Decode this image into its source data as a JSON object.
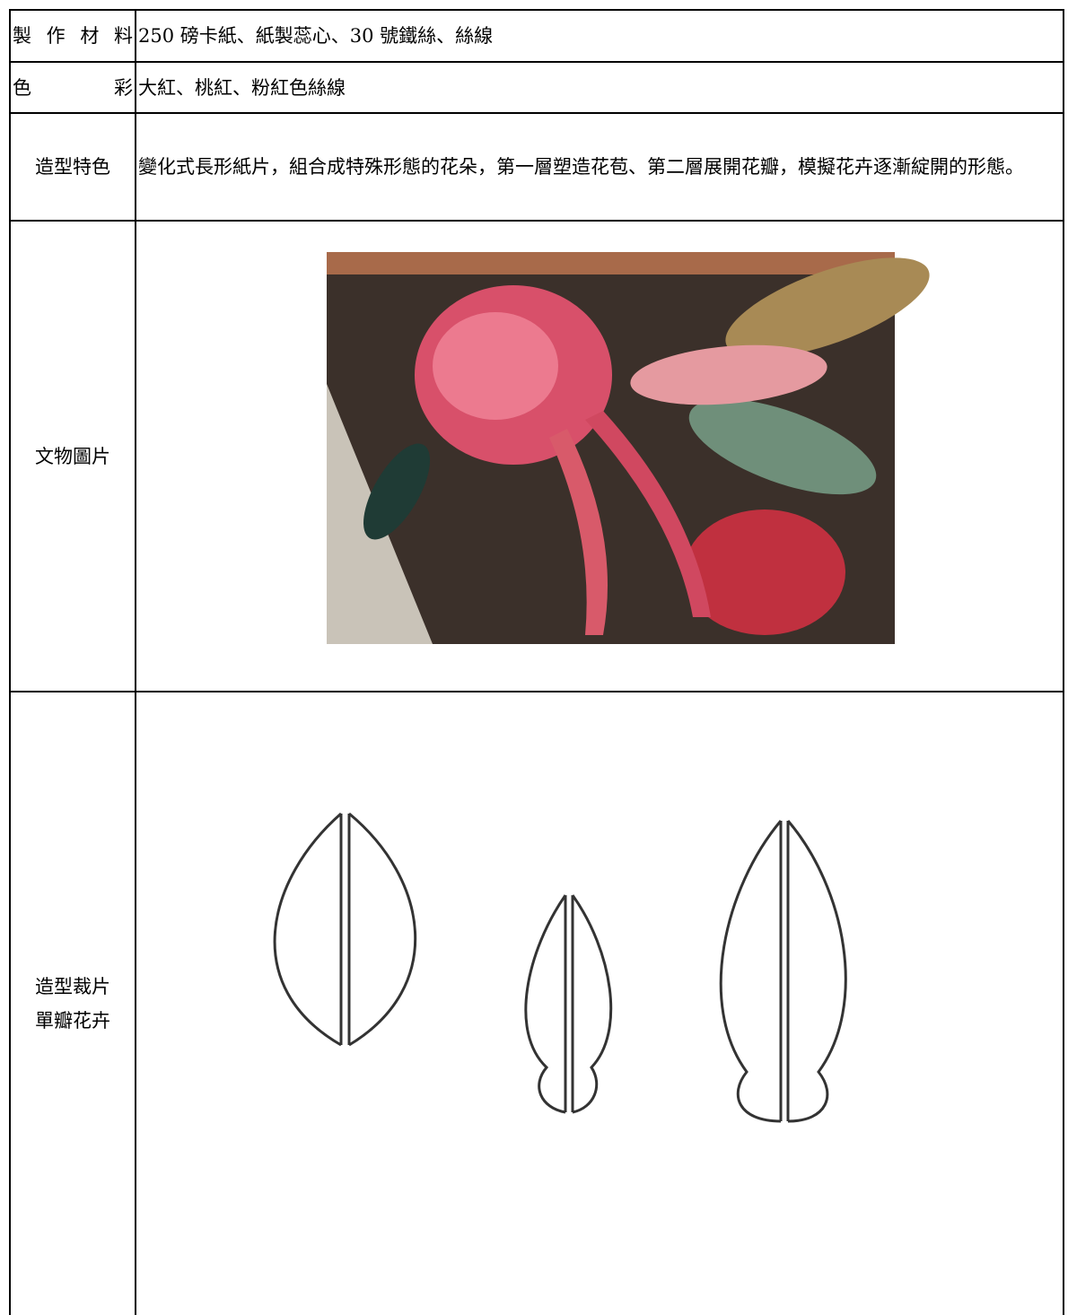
{
  "table": {
    "rows": [
      {
        "label": [
          "製作材料"
        ],
        "value": "250 磅卡紙、紙製蕊心、30 號鐵絲、絲線"
      },
      {
        "label": [
          "色彩"
        ],
        "value": "大紅、桃紅、粉紅色絲線"
      },
      {
        "label": [
          "造型特色"
        ],
        "value": "變化式長形紙片，組合成特殊形態的花朵，第一層塑造花苞、第二層展開花瓣，模擬花卉逐漸綻開的形態。"
      },
      {
        "label": [
          "文物圖片"
        ]
      },
      {
        "label": [
          "造型裁片",
          "單瓣花卉"
        ]
      }
    ]
  }
}
